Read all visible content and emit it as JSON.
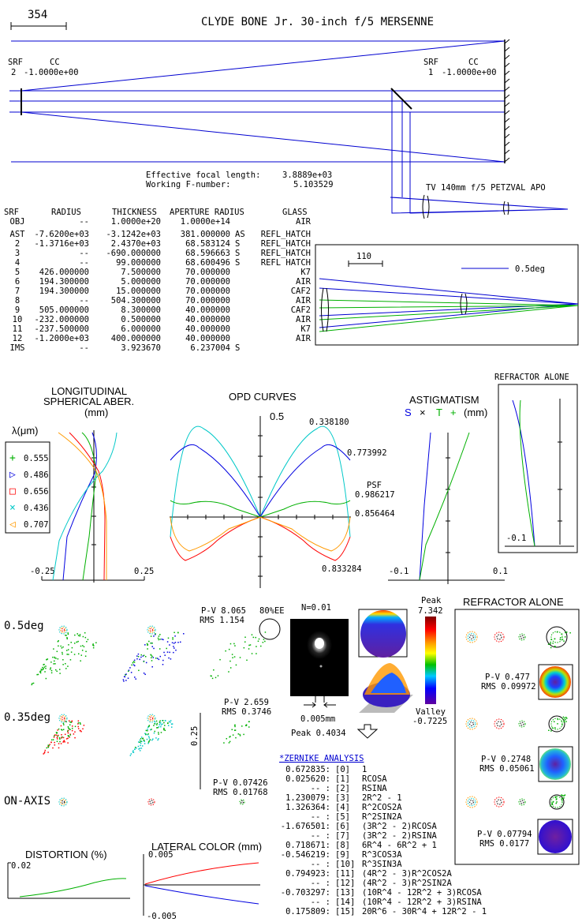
{
  "header": {
    "scale_label": "354",
    "title": "CLYDE BONE Jr. 30-inch f/5 MERSENNE"
  },
  "layout_labels": {
    "srf_left": {
      "srf": "SRF",
      "cc": "CC",
      "num": "2",
      "value": "-1.0000e+00"
    },
    "srf_right": {
      "srf": "SRF",
      "cc": "CC",
      "num": "1",
      "value": "-1.0000e+00"
    },
    "efl_label": "Effective focal length:",
    "efl_value": "3.8889e+03",
    "fnum_label": "Working F-number:",
    "fnum_value": "5.103529",
    "refractor_title": "TV 140mm f/5 PETZVAL APO",
    "inset_scale": "110",
    "inset_field": "0.5deg"
  },
  "table": {
    "headers": [
      "SRF",
      "RADIUS",
      "THICKNESS",
      "APERTURE RADIUS",
      "GLASS"
    ],
    "rows": [
      [
        "OBJ",
        "--",
        "1.0000e+20",
        "1.0000e+14",
        "",
        "AIR"
      ],
      [
        "AST",
        "-7.6200e+03",
        "-3.1242e+03",
        "381.000000",
        "AS",
        "REFL_HATCH"
      ],
      [
        "2",
        "-1.3716e+03",
        "2.4370e+03",
        "68.583124",
        "S",
        "REFL_HATCH"
      ],
      [
        "3",
        "--",
        "-690.000000",
        "68.596663",
        "S",
        "REFL_HATCH"
      ],
      [
        "4",
        "--",
        "99.000000",
        "68.600496",
        "S",
        "REFL HATCH"
      ],
      [
        "5",
        "426.000000",
        "7.500000",
        "70.000000",
        "",
        "K7"
      ],
      [
        "6",
        "194.300000",
        "5.000000",
        "70.000000",
        "",
        "AIR"
      ],
      [
        "7",
        "194.300000",
        "15.000000",
        "70.000000",
        "",
        "CAF2"
      ],
      [
        "8",
        "--",
        "504.300000",
        "70.000000",
        "",
        "AIR"
      ],
      [
        "9",
        "505.000000",
        "8.300000",
        "40.000000",
        "",
        "CAF2"
      ],
      [
        "10",
        "-232.000000",
        "0.500000",
        "40.000000",
        "",
        "AIR"
      ],
      [
        "11",
        "-237.500000",
        "6.000000",
        "40.000000",
        "",
        "K7"
      ],
      [
        "12",
        "-1.2000e+03",
        "400.000000",
        "40.000000",
        "",
        "AIR"
      ],
      [
        "IMS",
        "--",
        "3.923670",
        "6.237004",
        "S",
        ""
      ]
    ]
  },
  "lsa": {
    "title1": "LONGITUDINAL",
    "title2": "SPHERICAL ABER.",
    "title3": "(mm)",
    "lambda_label": "λ(μm)",
    "legend": [
      "0.555",
      "0.486",
      "0.656",
      "0.436",
      "0.707"
    ],
    "xmin": "-0.25",
    "xmax": "0.25"
  },
  "opd": {
    "title": "OPD CURVES",
    "ymax": "0.5",
    "labels": [
      "0.338180",
      "0.773992",
      "PSF",
      "0.986217",
      "0.856464",
      "0.833284"
    ]
  },
  "astig": {
    "title": "ASTIGMATISM",
    "s": "S",
    "x": "×",
    "t": "T",
    "plus": "+",
    "unit": "(mm)",
    "xmin": "-0.1",
    "xmax": "0.1"
  },
  "refractor_astig": {
    "title": "REFRACTOR ALONE",
    "xmin": "-0.1"
  },
  "spots": {
    "fields": [
      "0.5deg",
      "0.35deg",
      "ON-AXIS"
    ],
    "stats": [
      {
        "pv": "P-V 8.065",
        "rms": "RMS 1.154"
      },
      {
        "pv": "P-V 2.659",
        "rms": "RMS 0.3746"
      },
      {
        "pv": "P-V 0.07426",
        "rms": "RMS 0.01768"
      }
    ],
    "ee_label": "80%EE",
    "scale_label": "0.25"
  },
  "psf": {
    "n_label": "N=0.01",
    "scale": "0.005mm",
    "peak": "Peak 0.4034"
  },
  "colorbar": {
    "peak_label": "Peak",
    "peak": "7.342",
    "valley_label": "Valley",
    "valley": "-0.7225"
  },
  "refractor_spots": {
    "title": "REFRACTOR ALONE",
    "stats": [
      {
        "pv": "P-V 0.477",
        "rms": "RMS 0.09972"
      },
      {
        "pv": "P-V 0.2748",
        "rms": "RMS 0.05061"
      },
      {
        "pv": "P-V 0.07794",
        "rms": "RMS 0.0177"
      }
    ]
  },
  "zernike": {
    "title": "*ZERNIKE ANALYSIS",
    "rows": [
      [
        "0.672835:",
        "[0]",
        "1"
      ],
      [
        "0.025620:",
        "[1]",
        "RCOSA"
      ],
      [
        "  --    :",
        "[2]",
        "RSINA"
      ],
      [
        "1.230079:",
        "[3]",
        "2R^2 - 1"
      ],
      [
        "1.326364:",
        "[4]",
        "R^2COS2A"
      ],
      [
        "  --    :",
        "[5]",
        "R^2SIN2A"
      ],
      [
        "-1.676501:",
        "[6]",
        "(3R^2 - 2)RCOSA"
      ],
      [
        "  --    :",
        "[7]",
        "(3R^2 - 2)RSINA"
      ],
      [
        "0.718671:",
        "[8]",
        "6R^4 - 6R^2 + 1"
      ],
      [
        "-0.546219:",
        "[9]",
        "R^3COS3A"
      ],
      [
        "  --    :",
        "[10]",
        "R^3SIN3A"
      ],
      [
        "0.794923:",
        "[11]",
        "(4R^2 - 3)R^2COS2A"
      ],
      [
        "  --    :",
        "[12]",
        "(4R^2 - 3)R^2SIN2A"
      ],
      [
        "-0.703297:",
        "[13]",
        "(10R^4 - 12R^2 + 3)RCOSA"
      ],
      [
        "  --    :",
        "[14]",
        "(10R^4 - 12R^2 + 3)RSINA"
      ],
      [
        "0.175809:",
        "[15]",
        "20R^6 - 30R^4 + 12R^2 - 1"
      ]
    ]
  },
  "distortion": {
    "title": "DISTORTION (%)",
    "ymax": "0.02"
  },
  "lateral_color": {
    "title": "LATERAL COLOR (mm)",
    "ymax": "0.005",
    "ymin": "-0.005"
  },
  "colors": {
    "green": "#00b000",
    "blue": "#0000e0",
    "red": "#ff0000",
    "cyan": "#00c8c8",
    "orange": "#ff9900",
    "ray": "#0000d0"
  }
}
